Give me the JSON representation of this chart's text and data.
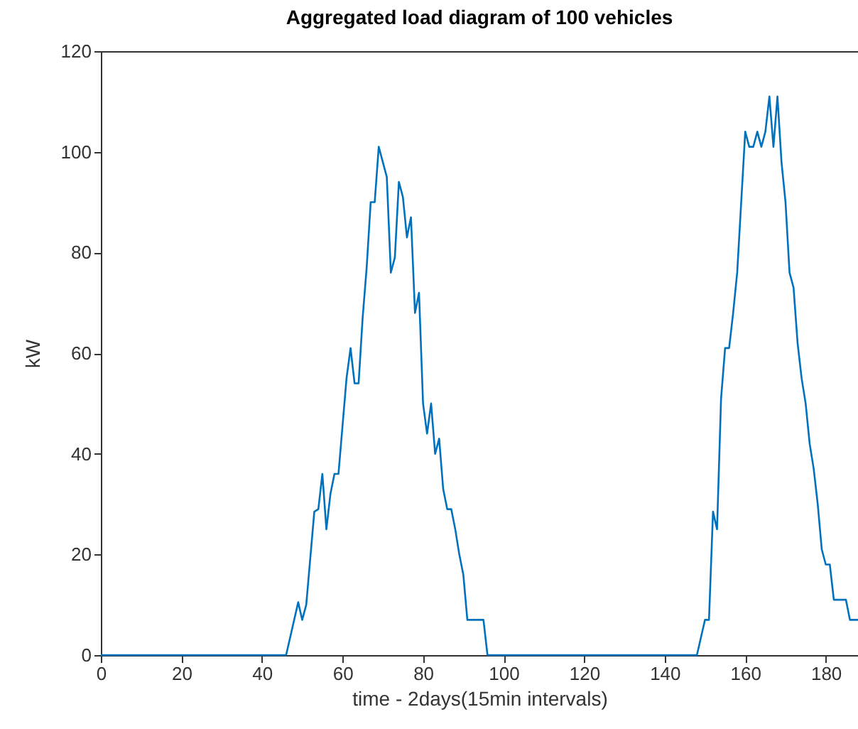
{
  "chart_data": {
    "type": "line",
    "title": "Aggregated load diagram of 100 vehicles",
    "xlabel": "time - 2days(15min intervals)",
    "ylabel": "kW",
    "x": [
      0,
      46,
      49,
      50,
      51,
      53,
      54,
      55,
      56,
      57,
      58,
      59,
      61,
      62,
      63,
      64,
      65,
      66,
      67,
      68,
      69,
      70,
      71,
      72,
      73,
      74,
      75,
      76,
      77,
      78,
      79,
      80,
      81,
      82,
      83,
      84,
      85,
      86,
      87,
      88,
      89,
      90,
      91,
      92,
      93,
      94,
      95,
      96,
      97,
      148,
      150,
      151,
      152,
      153,
      154,
      155,
      156,
      157,
      158,
      159,
      160,
      161,
      162,
      163,
      164,
      165,
      166,
      167,
      168,
      169,
      170,
      171,
      172,
      173,
      174,
      175,
      176,
      177,
      178,
      179,
      180,
      181,
      182,
      183,
      184,
      185,
      186,
      187,
      188
    ],
    "series": [
      {
        "color": "#0072bd",
        "values": [
          0,
          0,
          10.5,
          7,
          10,
          28.5,
          29,
          36,
          25,
          32,
          36,
          36,
          55,
          61,
          54,
          54,
          67,
          77,
          90,
          90,
          101,
          98,
          95,
          76,
          79,
          94,
          91,
          83,
          87,
          68,
          72,
          50,
          44,
          50,
          40,
          43,
          33,
          29,
          29,
          25,
          20,
          16,
          7,
          7,
          7,
          7,
          7,
          0,
          0,
          0,
          7,
          7,
          28.5,
          25,
          51,
          61,
          61,
          68,
          76,
          90,
          104,
          101,
          101,
          104,
          101,
          104,
          111,
          101,
          111,
          98,
          90,
          76,
          73,
          62,
          55,
          50,
          42,
          37,
          30,
          21,
          18,
          18,
          11,
          11,
          11,
          11,
          7,
          7,
          7
        ]
      }
    ],
    "xlim": [
      0,
      188
    ],
    "xticks": [
      0,
      20,
      40,
      60,
      80,
      100,
      120,
      140,
      160,
      180
    ],
    "ylim": [
      0,
      120
    ],
    "yticks": [
      0,
      20,
      40,
      60,
      80,
      100,
      120
    ],
    "grid": false,
    "legend": false,
    "marker": "none",
    "line_style": "solid"
  }
}
